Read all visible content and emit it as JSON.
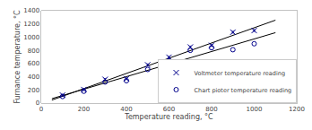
{
  "chart_data": {
    "type": "scatter",
    "xlabel": "Temperature reading, °C",
    "ylabel": "Furnance temperature, °C",
    "xlim": [
      0,
      1200
    ],
    "ylim": [
      0,
      1400
    ],
    "xticks": [
      0,
      200,
      400,
      600,
      800,
      1000,
      1200
    ],
    "yticks": [
      0,
      200,
      400,
      600,
      800,
      1000,
      1200,
      1400
    ],
    "grid": false,
    "legend": "lower right",
    "series": [
      {
        "type": "line",
        "x": [
          50,
          1100
        ],
        "values": [
          46.03030303030303,
          1257.6666666666667
        ],
        "color": "#000000"
      },
      {
        "type": "line",
        "x": [
          50,
          1100
        ],
        "values": [
          67.63636363636364,
          1068.0
        ],
        "color": "#000000"
      },
      {
        "type": "scatter",
        "name": "Voltmeter temperature reading",
        "marker": "x",
        "color": "#00008B",
        "x": [
          100,
          200,
          300,
          400,
          500,
          600,
          700,
          800,
          900,
          1000
        ],
        "values": [
          120,
          205,
          360,
          370,
          580,
          695,
          850,
          875,
          1075,
          1100
        ],
        "errors": [
          14,
          14,
          14,
          14,
          14,
          14,
          14,
          14,
          14,
          14
        ]
      },
      {
        "type": "scatter",
        "name": "Chart pioter temperature reading",
        "marker": "o",
        "color": "#00008B",
        "x": [
          100,
          200,
          300,
          400,
          500,
          600,
          700,
          800,
          900,
          1000
        ],
        "values": [
          100,
          180,
          320,
          340,
          510,
          640,
          800,
          840,
          810,
          900
        ]
      }
    ]
  }
}
